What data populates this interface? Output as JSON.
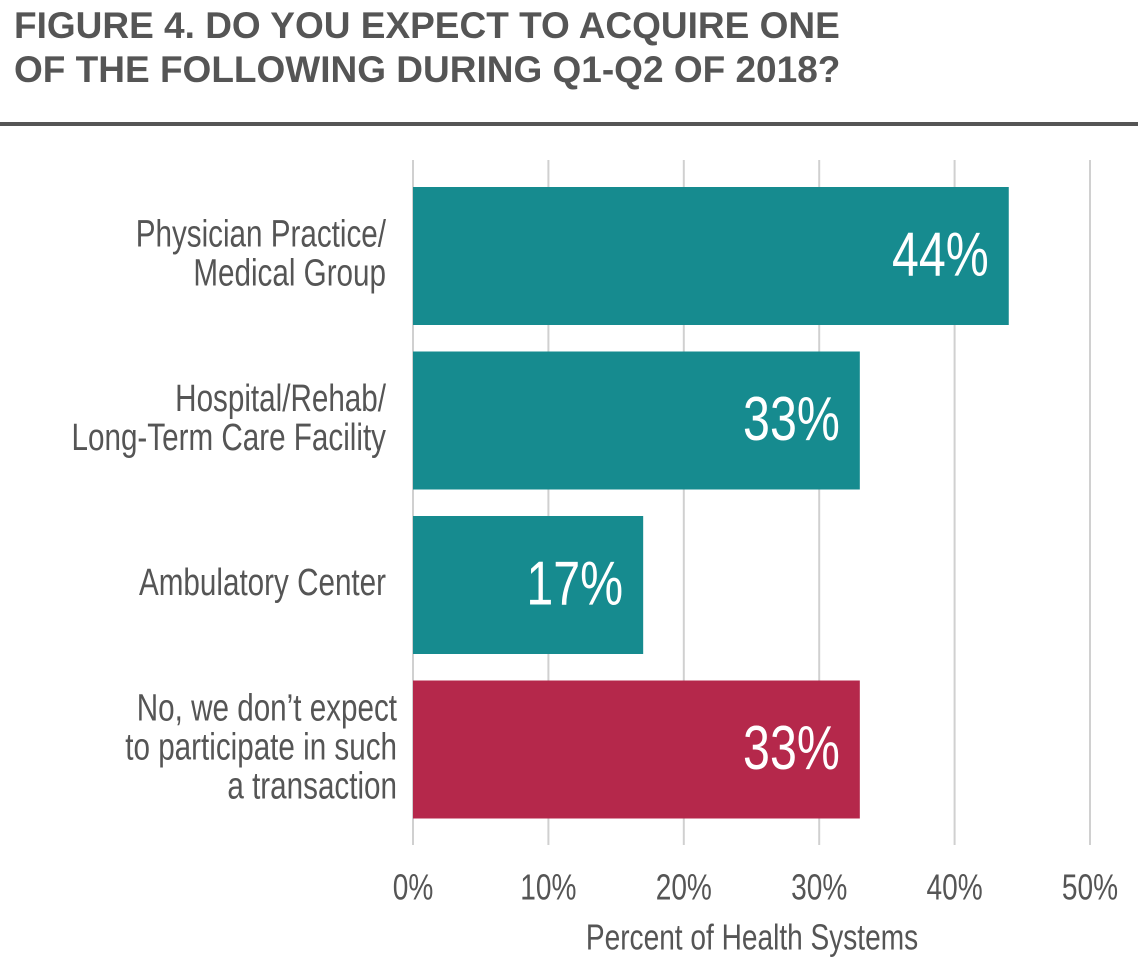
{
  "chart_data": {
    "type": "barh",
    "title": [
      "FIGURE 4. DO YOU EXPECT TO ACQUIRE ONE",
      "OF THE FOLLOWING DURING Q1-Q2 OF 2018?"
    ],
    "categories": [
      [
        "Physician Practice/",
        "Medical Group"
      ],
      [
        "Hospital/Rehab/",
        "Long-Term Care Facility"
      ],
      [
        "Ambulatory Center"
      ],
      [
        "No, we don’t expect",
        "to participate in such",
        "a transaction"
      ]
    ],
    "values": [
      44,
      33,
      17,
      33
    ],
    "value_labels": [
      "44%",
      "33%",
      "17%",
      "33%"
    ],
    "colors": [
      "#168b8f",
      "#168b8f",
      "#168b8f",
      "#b5284b"
    ],
    "xlim": [
      0,
      50
    ],
    "xticks": [
      {
        "value": 0,
        "label": "0%"
      },
      {
        "value": 10,
        "label": "10%"
      },
      {
        "value": 20,
        "label": "20%"
      },
      {
        "value": 30,
        "label": "30%"
      },
      {
        "value": 40,
        "label": "40%"
      },
      {
        "value": 50,
        "label": "50%"
      }
    ],
    "xlabel": "Percent of Health Systems",
    "grid": true
  }
}
